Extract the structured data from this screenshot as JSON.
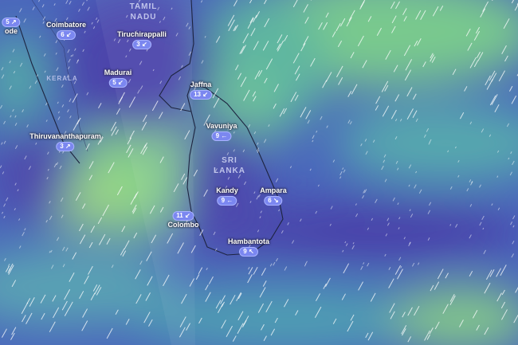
{
  "map": {
    "layer": "wind",
    "colors": {
      "calm": "#4a3fa8",
      "low": "#3f6fc4",
      "mid": "#3fa8b0",
      "high": "#7fd08a"
    },
    "regions": [
      {
        "name": "TAMIL NADU",
        "line1": "TAMIL",
        "line2": "NADU"
      },
      {
        "name": "KERALA",
        "line1": "KERALA"
      },
      {
        "name": "SRI LANKA",
        "line1": "SRI",
        "line2": "LANKA"
      }
    ],
    "cities": [
      {
        "name": "Kozhikode",
        "label": "ode",
        "wind": "5",
        "arrow": "↗"
      },
      {
        "name": "Coimbatore",
        "label": "Coimbatore",
        "wind": "6",
        "arrow": "↙"
      },
      {
        "name": "Tiruchirappalli",
        "label": "Tiruchirappalli",
        "wind": "3",
        "arrow": "↙"
      },
      {
        "name": "Madurai",
        "label": "Madurai",
        "wind": "5",
        "arrow": "↙"
      },
      {
        "name": "Thiruvananthapuram",
        "label": "Thiruvananthapuram",
        "wind": "3",
        "arrow": "↗"
      },
      {
        "name": "Jaffna",
        "label": "Jaffna",
        "wind": "13",
        "arrow": "↙"
      },
      {
        "name": "Vavuniya",
        "label": "Vavuniya",
        "wind": "9",
        "arrow": "←"
      },
      {
        "name": "Kandy",
        "label": "Kandy",
        "wind": "9",
        "arrow": "←"
      },
      {
        "name": "Ampara",
        "label": "Ampara",
        "wind": "6",
        "arrow": "↘"
      },
      {
        "name": "Colombo",
        "label": "Colombo",
        "wind": "11",
        "arrow": "↙"
      },
      {
        "name": "Hambantota",
        "label": "Hambantota",
        "wind": "9",
        "arrow": "↖"
      }
    ]
  }
}
